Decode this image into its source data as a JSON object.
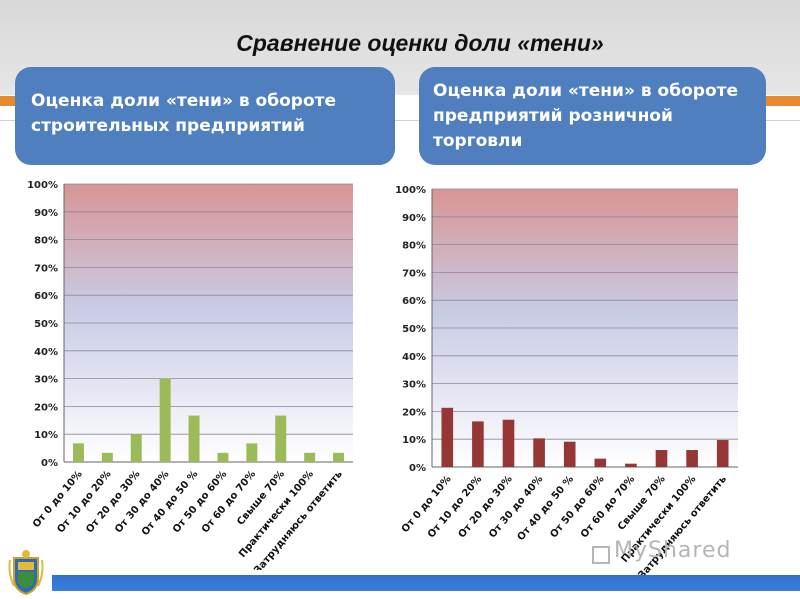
{
  "slide": {
    "title": "Сравнение оценки доли «тени»",
    "watermark": "MyShared"
  },
  "colors": {
    "panel": "#4f7fbf",
    "bar_left": "#9bbb59",
    "bar_right": "#953735",
    "footer": "#2e6fcf",
    "accent": "#e8892e"
  },
  "panels": {
    "left": "Оценка доли «тени» в обороте строительных предприятий",
    "right": "Оценка доли «тени» в обороте предприятий розничной торговли"
  },
  "chart_data": [
    {
      "type": "bar",
      "categories": [
        "От 0 до 10%",
        "От 10 до 20%",
        "От 20 до 30%",
        "От 30 до 40%",
        "От 40 до 50 %",
        "От 50 до 60%",
        "От 60 до 70%",
        "Свыше 70%",
        "Практически 100%",
        "Затрудняюсь ответить"
      ],
      "values": [
        6.7,
        3.3,
        10,
        30,
        16.7,
        3.3,
        6.7,
        16.7,
        3.3,
        3.3
      ],
      "ylim": [
        0,
        100
      ],
      "yticks": [
        "0%",
        "10%",
        "20%",
        "30%",
        "40%",
        "50%",
        "60%",
        "70%",
        "80%",
        "90%",
        "100%"
      ],
      "grid": true,
      "legend": "none"
    },
    {
      "type": "bar",
      "categories": [
        "От 0 до 10%",
        "От 10 до 20%",
        "От 20 до 30%",
        "От 30 до 40%",
        "От 40 до 50 %",
        "От 50 до 60%",
        "От 60 до 70%",
        "Свыше 70%",
        "Практически 100%",
        "Затрудняюсь ответить"
      ],
      "values": [
        21.3,
        16.4,
        17.0,
        10.3,
        9.1,
        3.0,
        1.2,
        6.1,
        6.1,
        9.7
      ],
      "ylim": [
        0,
        100
      ],
      "yticks": [
        "0%",
        "10%",
        "20%",
        "30%",
        "40%",
        "50%",
        "60%",
        "70%",
        "80%",
        "90%",
        "100%"
      ],
      "grid": true,
      "legend": "none"
    }
  ]
}
